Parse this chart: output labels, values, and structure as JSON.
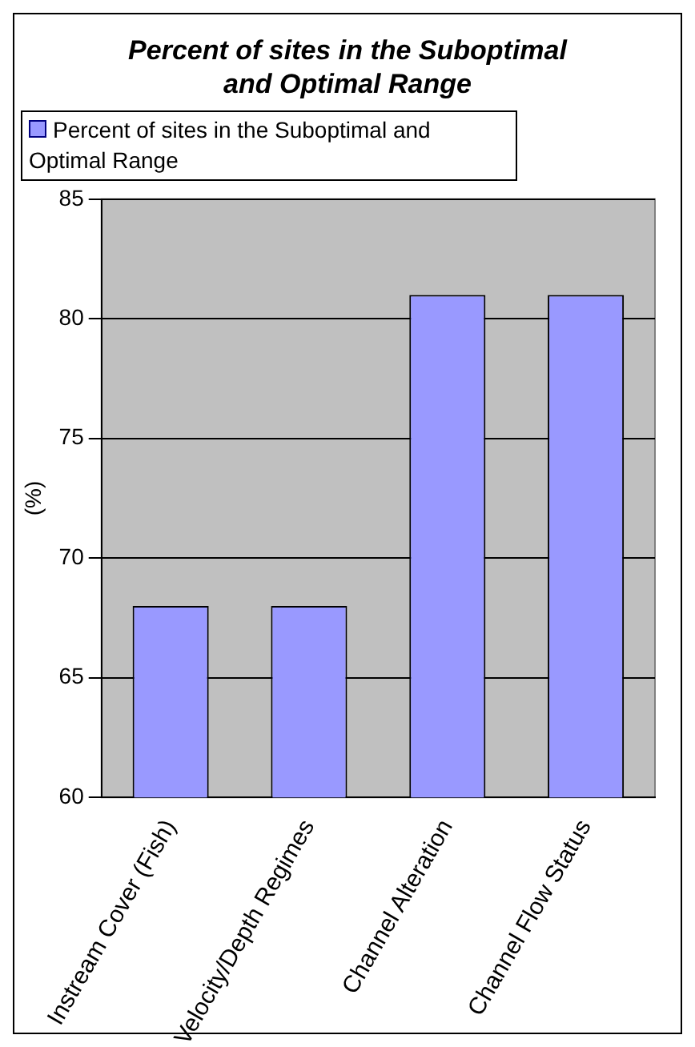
{
  "chart_data": {
    "type": "bar",
    "title": "Percent of sites in the Suboptimal and Optimal Range",
    "ylabel": "(%)",
    "categories": [
      "Instream Cover (Fish)",
      "Velocity/Depth Regimes",
      "Channel Alteration",
      "Channel Flow Status"
    ],
    "series": [
      {
        "name": "Percent of sites in the Suboptimal and Optimal Range",
        "color": "#9999ff",
        "values": [
          68,
          68,
          81,
          81
        ]
      }
    ],
    "ylim": [
      60,
      85
    ],
    "yticks": [
      60,
      65,
      70,
      75,
      80,
      85
    ],
    "grid": "y",
    "legend": "top"
  }
}
